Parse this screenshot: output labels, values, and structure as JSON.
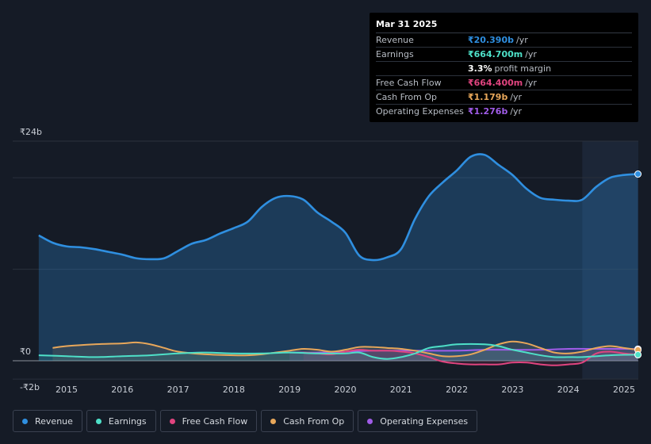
{
  "tooltip": {
    "date": "Mar 31 2025",
    "rows": [
      {
        "label": "Revenue",
        "value": "₹20.390b",
        "unit": "/yr",
        "color": "#2f8fe0"
      },
      {
        "label": "Earnings",
        "value": "₹664.700m",
        "unit": "/yr",
        "color": "#4ee0c8"
      },
      {
        "label": "",
        "value": "3.3%",
        "unit": "profit margin",
        "color": "#ffffff"
      },
      {
        "label": "Free Cash Flow",
        "value": "₹664.400m",
        "unit": "/yr",
        "color": "#e0447f"
      },
      {
        "label": "Cash From Op",
        "value": "₹1.179b",
        "unit": "/yr",
        "color": "#e8a75a"
      },
      {
        "label": "Operating Expenses",
        "value": "₹1.276b",
        "unit": "/yr",
        "color": "#a05ce8"
      }
    ]
  },
  "legend": [
    {
      "label": "Revenue",
      "color": "#2f8fe0"
    },
    {
      "label": "Earnings",
      "color": "#4ee0c8"
    },
    {
      "label": "Free Cash Flow",
      "color": "#e0447f"
    },
    {
      "label": "Cash From Op",
      "color": "#e8a75a"
    },
    {
      "label": "Operating Expenses",
      "color": "#a05ce8"
    }
  ],
  "chart_data": {
    "type": "line",
    "title": "",
    "xlabel": "",
    "ylabel": "",
    "ylim": [
      -2,
      24
    ],
    "xlim": [
      2014.5,
      2025.25
    ],
    "y_tick_labels": [
      "₹24b",
      "₹0",
      "-₹2b"
    ],
    "y_ticks": [
      24,
      0,
      -2
    ],
    "x_tick_labels": [
      "2015",
      "2016",
      "2017",
      "2018",
      "2019",
      "2020",
      "2021",
      "2022",
      "2023",
      "2024",
      "2025"
    ],
    "x_ticks": [
      2015,
      2016,
      2017,
      2018,
      2019,
      2020,
      2021,
      2022,
      2023,
      2024,
      2025
    ],
    "highlight_start": 2024.25,
    "series": [
      {
        "name": "Revenue",
        "color": "#2f8fe0",
        "x": [
          2014.5,
          2014.75,
          2015.0,
          2015.25,
          2015.5,
          2015.75,
          2016.0,
          2016.25,
          2016.5,
          2016.75,
          2017.0,
          2017.25,
          2017.5,
          2017.75,
          2018.0,
          2018.25,
          2018.5,
          2018.75,
          2019.0,
          2019.25,
          2019.5,
          2019.75,
          2020.0,
          2020.25,
          2020.5,
          2020.75,
          2021.0,
          2021.25,
          2021.5,
          2021.75,
          2022.0,
          2022.25,
          2022.5,
          2022.75,
          2023.0,
          2023.25,
          2023.5,
          2023.75,
          2024.0,
          2024.25,
          2024.5,
          2024.75,
          2025.0,
          2025.25
        ],
        "values": [
          13.7,
          12.9,
          12.5,
          12.4,
          12.2,
          11.9,
          11.6,
          11.2,
          11.1,
          11.2,
          12.0,
          12.8,
          13.2,
          13.9,
          14.5,
          15.2,
          16.8,
          17.8,
          18.0,
          17.6,
          16.2,
          15.2,
          14.0,
          11.5,
          11.0,
          11.3,
          12.2,
          15.5,
          18.0,
          19.5,
          20.8,
          22.3,
          22.5,
          21.4,
          20.3,
          18.8,
          17.8,
          17.6,
          17.5,
          17.6,
          19.0,
          20.0,
          20.3,
          20.4
        ]
      },
      {
        "name": "Earnings",
        "color": "#4ee0c8",
        "x": [
          2014.5,
          2015.0,
          2015.5,
          2016.0,
          2016.5,
          2017.0,
          2017.5,
          2018.0,
          2018.5,
          2019.0,
          2019.5,
          2020.0,
          2020.25,
          2020.5,
          2020.75,
          2021.0,
          2021.25,
          2021.5,
          2021.75,
          2022.0,
          2022.5,
          2022.75,
          2023.0,
          2023.25,
          2023.5,
          2023.75,
          2024.0,
          2024.25,
          2024.5,
          2024.75,
          2025.0,
          2025.25
        ],
        "values": [
          0.6,
          0.5,
          0.4,
          0.5,
          0.6,
          0.8,
          0.9,
          0.8,
          0.8,
          0.9,
          0.8,
          0.8,
          0.9,
          0.4,
          0.2,
          0.4,
          0.8,
          1.4,
          1.6,
          1.8,
          1.8,
          1.6,
          1.2,
          0.9,
          0.6,
          0.4,
          0.4,
          0.4,
          0.5,
          0.6,
          0.65,
          0.66
        ]
      },
      {
        "name": "Free Cash Flow",
        "color": "#e0447f",
        "x": [
          2019.25,
          2019.5,
          2019.75,
          2020.0,
          2020.25,
          2020.5,
          2020.75,
          2021.0,
          2021.25,
          2021.5,
          2021.75,
          2022.0,
          2022.25,
          2022.5,
          2022.75,
          2023.0,
          2023.25,
          2023.5,
          2023.75,
          2024.0,
          2024.25,
          2024.5,
          2024.75,
          2025.0,
          2025.25
        ],
        "values": [
          0.9,
          0.8,
          0.7,
          1.0,
          1.2,
          1.1,
          1.1,
          1.0,
          0.8,
          0.4,
          -0.1,
          -0.3,
          -0.4,
          -0.4,
          -0.4,
          -0.2,
          -0.2,
          -0.4,
          -0.5,
          -0.4,
          -0.2,
          0.8,
          1.0,
          0.8,
          0.66
        ]
      },
      {
        "name": "Cash From Op",
        "color": "#e8a75a",
        "x": [
          2014.75,
          2015.0,
          2015.5,
          2016.0,
          2016.25,
          2016.5,
          2016.75,
          2017.0,
          2017.5,
          2018.0,
          2018.25,
          2018.5,
          2018.75,
          2019.0,
          2019.25,
          2019.5,
          2019.75,
          2020.0,
          2020.25,
          2020.5,
          2020.75,
          2021.0,
          2021.25,
          2021.5,
          2021.75,
          2022.0,
          2022.25,
          2022.5,
          2022.75,
          2023.0,
          2023.25,
          2023.5,
          2023.75,
          2024.0,
          2024.25,
          2024.5,
          2024.75,
          2025.0,
          2025.25
        ],
        "values": [
          1.4,
          1.6,
          1.8,
          1.9,
          2.0,
          1.8,
          1.4,
          1.0,
          0.7,
          0.6,
          0.6,
          0.7,
          0.9,
          1.1,
          1.3,
          1.2,
          1.0,
          1.2,
          1.5,
          1.5,
          1.4,
          1.3,
          1.1,
          0.8,
          0.5,
          0.5,
          0.7,
          1.2,
          1.8,
          2.1,
          1.9,
          1.4,
          0.9,
          0.8,
          1.0,
          1.4,
          1.6,
          1.4,
          1.18
        ]
      },
      {
        "name": "Operating Expenses",
        "color": "#a05ce8",
        "x": [
          2019.0,
          2019.5,
          2020.0,
          2020.5,
          2021.0,
          2021.5,
          2022.0,
          2022.5,
          2023.0,
          2023.5,
          2024.0,
          2024.5,
          2025.0,
          2025.25
        ],
        "values": [
          0.9,
          0.9,
          1.0,
          1.1,
          1.1,
          1.1,
          1.1,
          1.2,
          1.2,
          1.2,
          1.3,
          1.3,
          1.3,
          1.28
        ]
      }
    ]
  }
}
